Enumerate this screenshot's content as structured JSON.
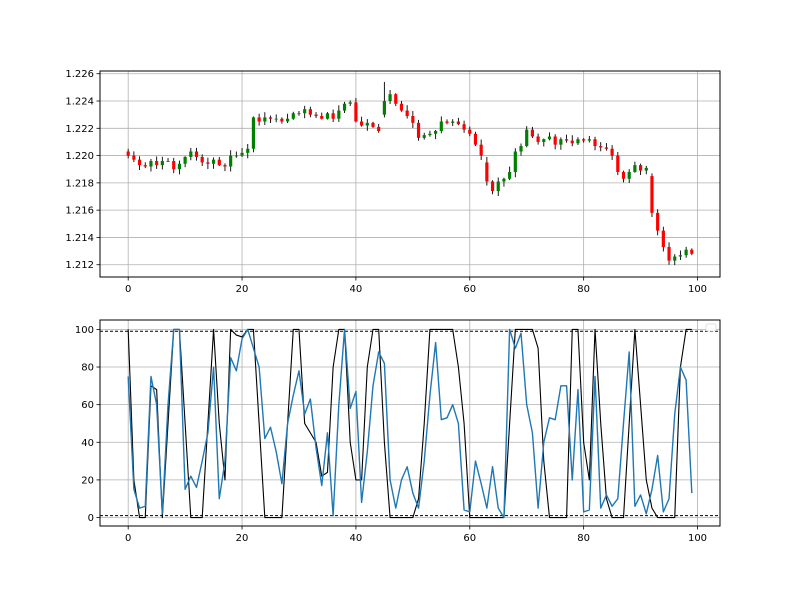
{
  "chart_data": [
    {
      "type": "candlestick",
      "x_ticks": [
        0,
        20,
        40,
        60,
        80,
        100
      ],
      "y_ticks": [
        1.212,
        1.214,
        1.216,
        1.218,
        1.22,
        1.222,
        1.224,
        1.226
      ],
      "xlim": [
        -4.95,
        103.95
      ],
      "ylim": [
        1.2111,
        1.2262
      ],
      "grid": true,
      "up_color": "#008000",
      "down_color": "#ff0000",
      "wick_color": "#000000",
      "close": [
        1.22,
        1.2197,
        1.2193,
        1.2192,
        1.2196,
        1.2193,
        1.2196,
        1.2196,
        1.219,
        1.2194,
        1.2199,
        1.2203,
        1.2199,
        1.2195,
        1.2194,
        1.2197,
        1.2193,
        1.2192,
        1.22,
        1.22,
        1.2202,
        1.2205,
        1.2228,
        1.2225,
        1.2228,
        1.2227,
        1.2227,
        1.2225,
        1.2227,
        1.2231,
        1.2231,
        1.2234,
        1.223,
        1.2229,
        1.2227,
        1.2231,
        1.2227,
        1.2233,
        1.2238,
        1.2239,
        1.2225,
        1.2222,
        1.2224,
        1.2221,
        1.2218,
        1.224,
        1.2245,
        1.2238,
        1.2233,
        1.2229,
        1.2224,
        1.2213,
        1.2215,
        1.2216,
        1.2218,
        1.2225,
        1.2224,
        1.2225,
        1.2223,
        1.2219,
        1.2216,
        1.2208,
        1.22,
        1.2181,
        1.2174,
        1.2181,
        1.2183,
        1.2188,
        1.2203,
        1.2207,
        1.2219,
        1.2214,
        1.221,
        1.2212,
        1.2214,
        1.2208,
        1.2212,
        1.2211,
        1.2209,
        1.2212,
        1.2211,
        1.2212,
        1.2207,
        1.2206,
        1.2205,
        1.22,
        1.2188,
        1.2183,
        1.2188,
        1.2193,
        1.2189,
        1.2191,
        1.2158,
        1.2145,
        1.2133,
        1.2123,
        1.2126,
        1.2127,
        1.2131,
        1.2128
      ],
      "sample_candles": [
        {
          "x": 0,
          "open": 1.2203,
          "close": 1.22,
          "high": 1.2205,
          "low": 1.2198
        },
        {
          "x": 45,
          "open": 1.223,
          "close": 1.224,
          "high": 1.2254,
          "low": 1.2228
        },
        {
          "x": 63,
          "open": 1.2195,
          "close": 1.2181,
          "high": 1.2199,
          "low": 1.2178
        },
        {
          "x": 92,
          "open": 1.2185,
          "close": 1.2158,
          "high": 1.2187,
          "low": 1.2155
        },
        {
          "x": 99,
          "open": 1.2131,
          "close": 1.2128,
          "high": 1.2132,
          "low": 1.2127
        }
      ]
    },
    {
      "type": "line",
      "x_ticks": [
        0,
        20,
        40,
        60,
        80,
        100
      ],
      "y_ticks": [
        0,
        20,
        40,
        60,
        80,
        100
      ],
      "xlim": [
        -4.95,
        103.95
      ],
      "ylim": [
        -4.5,
        105.0
      ],
      "grid": true,
      "reference_lines": [
        1,
        99
      ],
      "legend": "upper-right (empty)",
      "series": [
        {
          "color": "#000000",
          "values": [
            100,
            20,
            0,
            0,
            70,
            68,
            0,
            50,
            100,
            100,
            50,
            0,
            0,
            0,
            50,
            100,
            50,
            20,
            100,
            97,
            96,
            100,
            100,
            50,
            0,
            0,
            0,
            0,
            50,
            100,
            100,
            50,
            45,
            40,
            22,
            24,
            80,
            100,
            100,
            40,
            20,
            20,
            80,
            100,
            100,
            40,
            0,
            0,
            0,
            0,
            0,
            10,
            50,
            100,
            100,
            100,
            100,
            100,
            80,
            50,
            0,
            0,
            0,
            0,
            0,
            0,
            0,
            50,
            100,
            100,
            100,
            100,
            90,
            30,
            0,
            0,
            0,
            0,
            100,
            100,
            40,
            20,
            100,
            50,
            10,
            0,
            0,
            0,
            50,
            100,
            60,
            20,
            5,
            0,
            0,
            0,
            0,
            80,
            100,
            100
          ]
        },
        {
          "color": "#1f77b4",
          "values": [
            75,
            15,
            5,
            6,
            75,
            60,
            2,
            60,
            100,
            100,
            15,
            22,
            16,
            30,
            45,
            80,
            10,
            30,
            85,
            78,
            95,
            100,
            90,
            80,
            42,
            48,
            35,
            18,
            50,
            65,
            78,
            55,
            63,
            37,
            17,
            45,
            1,
            60,
            100,
            58,
            67,
            8,
            35,
            70,
            88,
            82,
            20,
            5,
            20,
            27,
            13,
            5,
            30,
            65,
            93,
            52,
            53,
            60,
            50,
            4,
            3,
            30,
            18,
            5,
            27,
            5,
            0,
            100,
            90,
            98,
            60,
            45,
            5,
            40,
            53,
            52,
            70,
            70,
            20,
            68,
            3,
            4,
            75,
            5,
            12,
            6,
            10,
            50,
            88,
            6,
            12,
            2,
            15,
            33,
            3,
            10,
            55,
            80,
            73,
            13
          ]
        }
      ]
    }
  ]
}
